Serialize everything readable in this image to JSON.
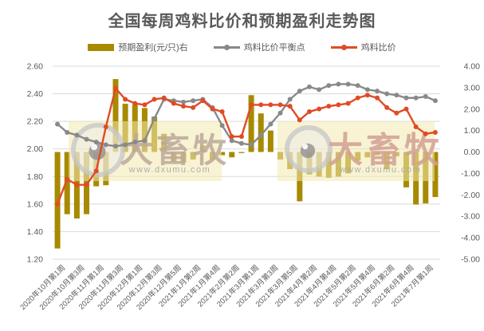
{
  "title": "全国每周鸡料比价和预期盈利走势图",
  "legend": [
    {
      "label": "预期盈利(元/只)右",
      "type": "bar",
      "color": "#A78A00"
    },
    {
      "label": "鸡料比价平衡点",
      "type": "line",
      "color": "#898989"
    },
    {
      "label": "鸡料比价",
      "type": "line",
      "color": "#E04B26"
    }
  ],
  "watermark": {
    "brand": "大畜牧",
    "url": "www.dxumu.com",
    "band_color": "#F3EAAE",
    "brand_color_left": "#BCA89B",
    "brand_color_right": "#D2A094",
    "url_color": "#A7A7A7"
  },
  "chart_data": {
    "type": "combo",
    "title": "全国每周鸡料比价和预期盈利走势图",
    "n_points": 40,
    "label_every": 2,
    "x_tick_labels": [
      "2020年10月第1周",
      "2020年10月第3周",
      "2020年11月第1周",
      "2020年11月第3周",
      "2020年12月第1周",
      "2020年12月第3周",
      "2020年12月第5周",
      "2021年1月第2周",
      "2021年1月第4周",
      "2021年2月第2周",
      "2021年3月第1周",
      "2021年3月第3周",
      "2021年3月第5周",
      "2021年4月第2周",
      "2021年4月第4周",
      "2021年5月第2周",
      "2021年5月第4周",
      "2021年6月第2周",
      "2021年6月第4周",
      "2021年7月第1周"
    ],
    "left_axis": {
      "min": 1.2,
      "max": 2.6,
      "step": 0.2,
      "ticks": [
        "2.60",
        "2.40",
        "2.20",
        "2.00",
        "1.80",
        "1.60",
        "1.40",
        "1.20"
      ]
    },
    "right_axis": {
      "min": -5.0,
      "max": 4.0,
      "step": 1.0,
      "ticks": [
        "4.00",
        "3.00",
        "2.00",
        "1.00",
        "0.00",
        "-1.00",
        "-2.00",
        "-3.00",
        "-4.00",
        "-5.00"
      ]
    },
    "grid": true,
    "legend_position": "top",
    "series": [
      {
        "name": "预期盈利(元/只)右",
        "type": "bar",
        "axis": "right",
        "color": "#A78A00",
        "values": [
          -4.5,
          -2.9,
          -3.1,
          -2.9,
          -1.6,
          -1.55,
          3.4,
          2.25,
          2.2,
          2.05,
          1.65,
          0.85,
          -0.45,
          -0.5,
          -0.35,
          0.3,
          -0.35,
          -0.15,
          -0.25,
          -0.05,
          2.65,
          1.8,
          1.0,
          -0.35,
          -0.8,
          -2.3,
          -1.05,
          -1.15,
          -1.2,
          -1.15,
          -1.0,
          -0.4,
          -0.25,
          -0.15,
          -0.8,
          -0.2,
          -1.65,
          -2.45,
          -2.4,
          -2.1
        ]
      },
      {
        "name": "鸡料比价平衡点",
        "type": "line",
        "axis": "left",
        "color": "#898989",
        "values": [
          2.18,
          2.12,
          2.1,
          2.07,
          2.05,
          2.03,
          2.02,
          2.03,
          2.05,
          2.06,
          2.22,
          2.36,
          2.35,
          2.34,
          2.35,
          2.36,
          2.3,
          2.17,
          2.06,
          2.04,
          2.03,
          2.1,
          2.18,
          2.26,
          2.36,
          2.42,
          2.45,
          2.43,
          2.46,
          2.47,
          2.47,
          2.46,
          2.43,
          2.42,
          2.4,
          2.39,
          2.37,
          2.37,
          2.38,
          2.35
        ]
      },
      {
        "name": "鸡料比价",
        "type": "line",
        "axis": "left",
        "color": "#E04B26",
        "values": [
          1.6,
          1.78,
          1.74,
          1.74,
          1.84,
          2.16,
          2.44,
          2.36,
          2.33,
          2.32,
          2.36,
          2.37,
          2.33,
          2.31,
          2.3,
          2.35,
          2.29,
          2.27,
          2.09,
          2.09,
          2.32,
          2.32,
          2.32,
          2.32,
          2.31,
          2.21,
          2.27,
          2.29,
          2.31,
          2.32,
          2.33,
          2.37,
          2.39,
          2.37,
          2.3,
          2.26,
          2.29,
          2.16,
          2.11,
          2.12
        ]
      }
    ]
  }
}
